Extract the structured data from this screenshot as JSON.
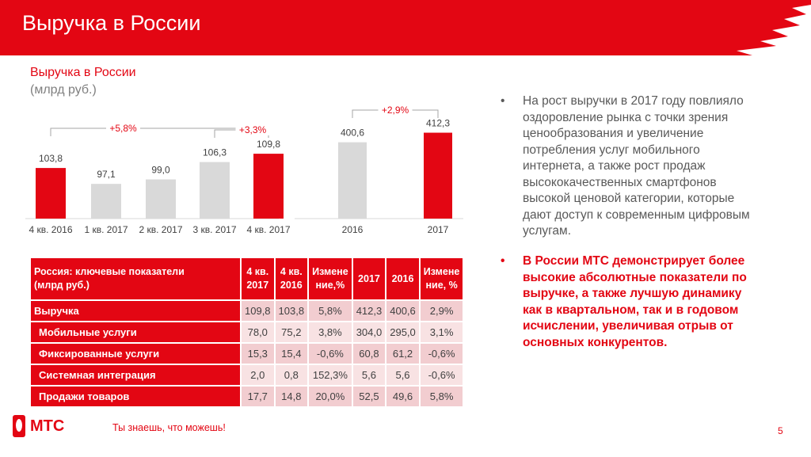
{
  "header": {
    "title": "Выручка в России"
  },
  "chart_section": {
    "title": "Выручка в России",
    "unit": "(млрд руб.)"
  },
  "chart_data": [
    {
      "type": "bar",
      "title": "Выручка в России (млрд руб.) — квартальная",
      "categories": [
        "4 кв. 2016",
        "1 кв. 2017",
        "2 кв. 2017",
        "3 кв. 2017",
        "4 кв. 2017"
      ],
      "values": [
        103.8,
        97.1,
        99.0,
        106.3,
        109.8
      ],
      "value_labels": [
        "103,8",
        "97,1",
        "99,0",
        "106,3",
        "109,8"
      ],
      "highlight": [
        true,
        false,
        false,
        false,
        true
      ],
      "annotations": [
        {
          "text": "+5,8%",
          "from": "4 кв. 2016",
          "to": "4 кв. 2017"
        },
        {
          "text": "+3,3%",
          "from": "3 кв. 2017",
          "to": "4 кв. 2017"
        }
      ],
      "ylim": [
        82.5,
        115
      ]
    },
    {
      "type": "bar",
      "title": "Выручка в России (млрд руб.) — годовая",
      "categories": [
        "2016",
        "2017"
      ],
      "values": [
        400.6,
        412.3
      ],
      "value_labels": [
        "400,6",
        "412,3"
      ],
      "highlight": [
        false,
        true
      ],
      "annotations": [
        {
          "text": "+2,9%",
          "from": "2016",
          "to": "2017"
        }
      ],
      "ylim": [
        307,
        420
      ]
    }
  ],
  "colors": {
    "accent": "#e30613",
    "muted": "#d9d9d9"
  },
  "table": {
    "headers": [
      "Россия: ключевые показатели\n (млрд руб.)",
      "4 кв.\n2017",
      "4 кв.\n2016",
      "Измене\nние,%",
      "2017",
      "2016",
      "Измене\nние, %"
    ],
    "rows": [
      {
        "label": "Выручка",
        "values": [
          "109,8",
          "103,8",
          "5,8%",
          "412,3",
          "400,6",
          "2,9%"
        ]
      },
      {
        "label": "Мобильные услуги",
        "values": [
          "78,0",
          "75,2",
          "3,8%",
          "304,0",
          "295,0",
          "3,1%"
        ]
      },
      {
        "label": "Фиксированные услуги",
        "values": [
          "15,3",
          "15,4",
          "-0,6%",
          "60,8",
          "61,2",
          "-0,6%"
        ]
      },
      {
        "label": "Системная интеграция",
        "values": [
          "2,0",
          "0,8",
          "152,3%",
          "5,6",
          "5,6",
          "-0,6%"
        ]
      },
      {
        "label": "Продажи товаров",
        "values": [
          "17,7",
          "14,8",
          "20,0%",
          "52,5",
          "49,6",
          "5,8%"
        ]
      }
    ]
  },
  "bullets": [
    {
      "marker": "•",
      "text": "На рост выручки в 2017 году повлияло оздоровление рынка с точки зрения ценообразования и увеличение потребления услуг мобильного интернета, а также рост продаж высококачественных смартфонов высокой ценовой категории, которые дают доступ к современным  цифровым услугам."
    },
    {
      "marker": "•",
      "text": "В России МТС демонстрирует более высокие абсолютные показатели по выручке, а также лучшую динамику как в квартальном, так и в годовом исчислении, увеличивая отрыв от основных конкурентов."
    }
  ],
  "footer": {
    "brand": "МТС",
    "slogan": "Ты знаешь, что можешь!",
    "page": "5"
  }
}
